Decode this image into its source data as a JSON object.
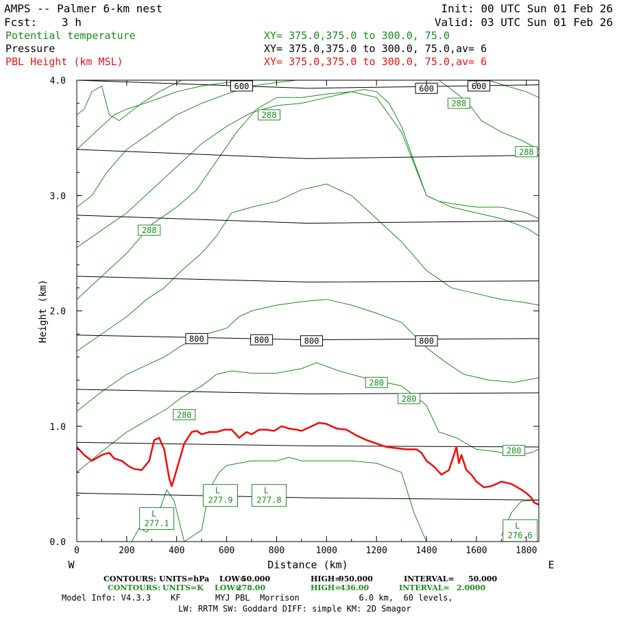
{
  "header": {
    "title": "AMPS -- Palmer 6-km nest",
    "fcst_label": "Fcst:",
    "fcst_value": "3 h",
    "init": "Init: 00 UTC Sun 01 Feb 26",
    "valid": "Valid: 03 UTC Sun 01 Feb 26"
  },
  "fields": [
    {
      "name": "Potential temperature",
      "xy": "XY= 375.0,375.0 to 300.0, 75.0",
      "color": "#1a8a1a"
    },
    {
      "name": "Pressure",
      "xy": "XY= 375.0,375.0 to 300.0, 75.0,av= 6",
      "color": "#000000"
    },
    {
      "name": "PBL Height (km MSL)",
      "xy": "XY= 375.0,375.0 to 300.0, 75.0,av= 6",
      "color": "#ee1111"
    }
  ],
  "colors": {
    "theta": "#1a8a1a",
    "pressure": "#000000",
    "pbl": "#ee1111"
  },
  "footer": {
    "line1": {
      "label": "CONTOURS:",
      "units": "UNITS=hPa",
      "low_label": "LOW=",
      "low": "50.000",
      "high_label": "HIGH=",
      "high": "950.000",
      "interval_label": "INTERVAL=",
      "interval": "50.000"
    },
    "line2": {
      "label": "CONTOURS:",
      "units": "UNITS=K",
      "low_label": "LOW=",
      "low": "278.00",
      "high_label": "HIGH=",
      "high": "436.00",
      "interval_label": "INTERVAL=",
      "interval": "2.0000"
    },
    "model_info": "Model Info: V4.3.3    KF       MYJ PBL  Morrison            6.0 km,  60 levels,",
    "model_info2": "LW: RRTM SW: Goddard DIFF: simple KM: 2D Smagor"
  },
  "chart_data": {
    "type": "line",
    "xlabel": "Distance (km)",
    "ylabel": "Height (km)",
    "xlim": [
      0,
      1850
    ],
    "ylim": [
      0,
      4.0
    ],
    "x_ticks": [
      0,
      200,
      400,
      600,
      800,
      1000,
      1200,
      1400,
      1600,
      1800
    ],
    "y_ticks": [
      0.0,
      1.0,
      2.0,
      3.0,
      4.0
    ],
    "y_tick_labels": [
      "0.0",
      "1.0",
      "2.0",
      "3.0",
      "4.0"
    ],
    "left_end_label": "W",
    "right_end_label": "E",
    "pressure_contours": [
      {
        "level": 950,
        "x": [
          0,
          925,
          1850
        ],
        "y": [
          0.42,
          0.38,
          0.36
        ]
      },
      {
        "level": 900,
        "x": [
          0,
          925,
          1850
        ],
        "y": [
          0.86,
          0.83,
          0.82
        ]
      },
      {
        "level": 850,
        "x": [
          0,
          925,
          1850
        ],
        "y": [
          1.32,
          1.28,
          1.29
        ]
      },
      {
        "level": 800,
        "x": [
          0,
          925,
          1850
        ],
        "y": [
          1.79,
          1.75,
          1.76
        ]
      },
      {
        "level": 750,
        "x": [
          0,
          925,
          1850
        ],
        "y": [
          2.3,
          2.25,
          2.26
        ]
      },
      {
        "level": 700,
        "x": [
          0,
          925,
          1850
        ],
        "y": [
          2.83,
          2.76,
          2.78
        ]
      },
      {
        "level": 650,
        "x": [
          0,
          925,
          1850
        ],
        "y": [
          3.4,
          3.32,
          3.35
        ]
      },
      {
        "level": 600,
        "x": [
          0,
          925,
          1850
        ],
        "y": [
          4.0,
          3.93,
          3.96
        ]
      }
    ],
    "pressure_labels": [
      {
        "text": "600",
        "x": 660,
        "y": 3.95
      },
      {
        "text": "600",
        "x": 1400,
        "y": 3.93
      },
      {
        "text": "600",
        "x": 1610,
        "y": 3.95
      },
      {
        "text": "800",
        "x": 480,
        "y": 1.76
      },
      {
        "text": "800",
        "x": 740,
        "y": 1.75
      },
      {
        "text": "800",
        "x": 940,
        "y": 1.74
      },
      {
        "text": "800",
        "x": 1400,
        "y": 1.74
      }
    ],
    "theta_contours": [
      {
        "level": 278,
        "x": [
          220,
          250,
          280,
          320,
          360,
          390,
          430,
          500,
          530,
          570,
          600,
          650,
          700,
          800,
          850,
          900,
          1000,
          1100,
          1200,
          1300,
          1350,
          1380,
          1400
        ],
        "y": [
          0.0,
          0.12,
          0.08,
          0.2,
          0.45,
          0.35,
          0.0,
          0.1,
          0.45,
          0.6,
          0.66,
          0.68,
          0.7,
          0.7,
          0.73,
          0.7,
          0.7,
          0.7,
          0.68,
          0.6,
          0.25,
          0.1,
          0.0
        ]
      },
      {
        "level": 278,
        "x": [
          1700,
          1740,
          1780,
          1850
        ],
        "y": [
          0.05,
          0.25,
          0.35,
          0.36
        ]
      },
      {
        "level": 280,
        "x": [
          0,
          100,
          200,
          280,
          360,
          420,
          500,
          560,
          620,
          700,
          800,
          900,
          960,
          1050,
          1150,
          1300,
          1400,
          1450,
          1520,
          1600,
          1680,
          1750,
          1820,
          1850
        ],
        "y": [
          0.6,
          0.78,
          0.95,
          1.05,
          1.15,
          1.25,
          1.35,
          1.45,
          1.48,
          1.46,
          1.46,
          1.5,
          1.55,
          1.48,
          1.42,
          1.35,
          1.18,
          0.95,
          0.9,
          0.8,
          0.78,
          0.75,
          0.77,
          0.8
        ]
      },
      {
        "level": 282,
        "x": [
          0,
          100,
          200,
          300,
          350,
          420,
          520,
          600,
          650,
          700,
          800,
          900,
          1000,
          1100,
          1200,
          1300,
          1400,
          1480,
          1550,
          1650,
          1750,
          1850
        ],
        "y": [
          1.13,
          1.3,
          1.45,
          1.55,
          1.6,
          1.7,
          1.8,
          1.85,
          1.95,
          2.0,
          2.05,
          2.08,
          2.1,
          2.05,
          1.98,
          1.9,
          1.68,
          1.55,
          1.45,
          1.4,
          1.38,
          1.42
        ]
      },
      {
        "level": 284,
        "x": [
          0,
          100,
          200,
          280,
          350,
          420,
          500,
          560,
          620,
          700,
          800,
          900,
          1000,
          1100,
          1200,
          1300,
          1400,
          1500,
          1600,
          1700,
          1800,
          1850
        ],
        "y": [
          1.65,
          1.8,
          1.95,
          2.1,
          2.2,
          2.35,
          2.5,
          2.65,
          2.85,
          2.9,
          2.95,
          3.05,
          3.1,
          3.0,
          2.8,
          2.6,
          2.35,
          2.2,
          2.15,
          2.1,
          2.07,
          2.05
        ]
      },
      {
        "level": 286,
        "x": [
          0,
          100,
          200,
          300,
          400,
          480,
          560,
          640,
          720,
          800,
          900,
          1000,
          1100,
          1200,
          1300,
          1400,
          1500,
          1600,
          1700,
          1800,
          1850
        ],
        "y": [
          2.1,
          2.3,
          2.5,
          2.75,
          2.9,
          3.05,
          3.3,
          3.55,
          3.75,
          3.85,
          3.85,
          3.88,
          3.9,
          3.85,
          3.55,
          3.0,
          2.9,
          2.85,
          2.8,
          2.72,
          2.65
        ]
      },
      {
        "level": 288,
        "x": [
          0,
          100,
          200,
          300,
          400,
          500,
          600,
          700,
          800,
          900,
          1000,
          1100,
          1150,
          1200,
          1250,
          1300,
          1350,
          1400,
          1450,
          1500,
          1600,
          1700,
          1800,
          1850
        ],
        "y": [
          2.55,
          2.7,
          2.85,
          3.05,
          3.25,
          3.45,
          3.6,
          3.72,
          3.78,
          3.8,
          3.85,
          3.9,
          3.92,
          3.9,
          3.8,
          3.6,
          3.3,
          3.0,
          2.95,
          2.93,
          2.9,
          2.9,
          2.85,
          2.8
        ]
      },
      {
        "level": 290,
        "x": [
          0,
          60,
          120,
          200,
          300,
          400,
          500,
          600,
          700,
          800,
          880
        ],
        "y": [
          2.9,
          3.0,
          3.2,
          3.4,
          3.55,
          3.7,
          3.8,
          3.88,
          3.95,
          3.98,
          4.0
        ]
      },
      {
        "level": 292,
        "x": [
          0,
          50,
          100,
          150,
          200,
          300,
          400,
          500,
          600,
          680
        ],
        "y": [
          3.4,
          3.5,
          3.6,
          3.7,
          3.75,
          3.82,
          3.9,
          3.95,
          3.98,
          4.0
        ]
      },
      {
        "level": 294,
        "x": [
          0,
          30,
          60,
          100,
          130,
          170,
          200,
          260,
          330,
          420
        ],
        "y": [
          3.7,
          3.75,
          3.9,
          3.95,
          3.7,
          3.65,
          3.7,
          3.8,
          3.9,
          4.0
        ]
      },
      {
        "level": 286,
        "x": [
          1450,
          1500,
          1560,
          1620,
          1700,
          1780,
          1850
        ],
        "y": [
          4.0,
          3.92,
          3.82,
          3.65,
          3.55,
          3.48,
          3.4
        ]
      },
      {
        "level": 284,
        "x": [
          1650,
          1720,
          1800,
          1850
        ],
        "y": [
          4.0,
          3.95,
          3.9,
          3.85
        ]
      }
    ],
    "theta_labels": [
      {
        "text": "288",
        "x": 770,
        "y": 3.7
      },
      {
        "text": "288",
        "x": 1530,
        "y": 3.8
      },
      {
        "text": "288",
        "x": 1800,
        "y": 3.38
      },
      {
        "text": "288",
        "x": 290,
        "y": 2.7
      },
      {
        "text": "280",
        "x": 1200,
        "y": 1.38
      },
      {
        "text": "280",
        "x": 1330,
        "y": 1.24
      },
      {
        "text": "280",
        "x": 430,
        "y": 1.1
      },
      {
        "text": "280",
        "x": 1750,
        "y": 0.79
      }
    ],
    "lows": [
      {
        "label": "L",
        "value": "277.1",
        "x": 320,
        "y": 0.2
      },
      {
        "label": "L",
        "value": "277.9",
        "x": 575,
        "y": 0.4
      },
      {
        "label": "L",
        "value": "277.8",
        "x": 770,
        "y": 0.4
      },
      {
        "label": "L",
        "value": "276.6",
        "x": 1775,
        "y": 0.06
      }
    ],
    "pbl_height": {
      "x": [
        0,
        30,
        60,
        100,
        130,
        150,
        180,
        210,
        230,
        260,
        290,
        310,
        330,
        350,
        370,
        380,
        390,
        410,
        430,
        460,
        480,
        500,
        530,
        560,
        590,
        620,
        650,
        680,
        700,
        730,
        760,
        790,
        820,
        850,
        880,
        900,
        940,
        970,
        1000,
        1040,
        1080,
        1120,
        1160,
        1200,
        1240,
        1280,
        1320,
        1360,
        1380,
        1400,
        1430,
        1460,
        1490,
        1510,
        1520,
        1530,
        1540,
        1560,
        1580,
        1600,
        1630,
        1660,
        1700,
        1740,
        1780,
        1800,
        1820,
        1830,
        1850
      ],
      "y": [
        0.82,
        0.75,
        0.7,
        0.75,
        0.77,
        0.72,
        0.7,
        0.65,
        0.63,
        0.62,
        0.7,
        0.88,
        0.9,
        0.8,
        0.55,
        0.48,
        0.55,
        0.7,
        0.85,
        0.95,
        0.96,
        0.93,
        0.95,
        0.95,
        0.97,
        0.97,
        0.9,
        0.95,
        0.93,
        0.97,
        0.97,
        0.96,
        1.0,
        0.98,
        0.97,
        0.96,
        1.0,
        1.03,
        1.02,
        0.98,
        0.97,
        0.92,
        0.88,
        0.85,
        0.82,
        0.81,
        0.8,
        0.8,
        0.77,
        0.7,
        0.65,
        0.58,
        0.62,
        0.75,
        0.82,
        0.68,
        0.75,
        0.62,
        0.58,
        0.52,
        0.47,
        0.48,
        0.52,
        0.5,
        0.45,
        0.42,
        0.38,
        0.34,
        0.32
      ]
    }
  }
}
